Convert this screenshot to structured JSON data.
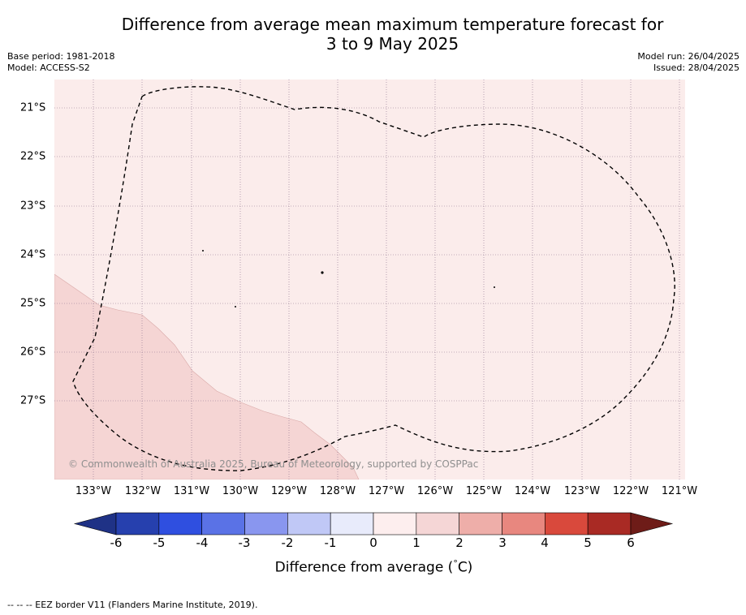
{
  "header": {
    "title_line1": "Difference from average mean maximum temperature forecast for",
    "title_line2": "3 to 9 May 2025",
    "base_period": "Base period: 1981-2018",
    "model": "Model: ACCESS-S2",
    "model_run": "Model run: 26/04/2025",
    "issued": "Issued: 28/04/2025"
  },
  "map": {
    "lon_labels": [
      "133°W",
      "132°W",
      "131°W",
      "130°W",
      "129°W",
      "128°W",
      "127°W",
      "126°W",
      "125°W",
      "124°W",
      "123°W",
      "122°W",
      "121°W"
    ],
    "lat_labels": [
      "21°S",
      "22°S",
      "23°S",
      "24°S",
      "25°S",
      "26°S",
      "27°S"
    ],
    "copyright": "© Commonwealth of Australia 2025, Bureau of Meteorology, supported by COSPPac",
    "colors": {
      "light_band": "#fbeceb",
      "stronger_band": "#f5d5d4",
      "grid": "#8a6f8a"
    }
  },
  "colorbar": {
    "ticks": [
      "-6",
      "-5",
      "-4",
      "-3",
      "-2",
      "-1",
      "0",
      "1",
      "2",
      "3",
      "4",
      "5",
      "6"
    ],
    "colors": [
      "#1f3286",
      "#2640ae",
      "#2f4fe0",
      "#5a72e6",
      "#8996ef",
      "#c0c8f6",
      "#e8ebfb",
      "#fdeeee",
      "#f5d6d6",
      "#eeaea9",
      "#e8877f",
      "#d9493c",
      "#a92a24",
      "#6e1c18"
    ],
    "label": "Difference from average (",
    "unit_degree": "°",
    "unit_tail": "C)"
  },
  "footer": {
    "legend": "-- -- -- EEZ border V11 (Flanders Marine Institute, 2019)."
  }
}
